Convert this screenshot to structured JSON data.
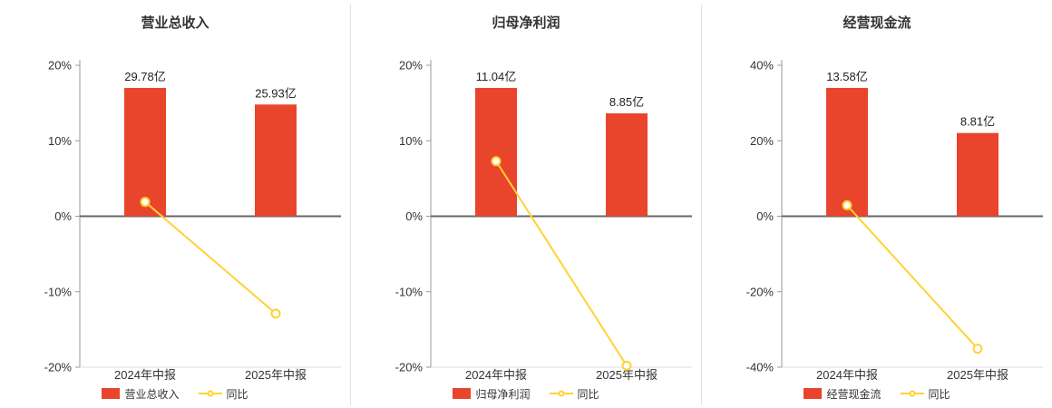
{
  "colors": {
    "background": "#ffffff",
    "bar": "#e8452c",
    "line": "#ffd234",
    "axis": "#999999",
    "baseline": "#dddddd",
    "zero_line": "#666666",
    "tick_label": "#333333",
    "value_label": "#222222",
    "category_label": "#333333",
    "divider": "#e0e0e0",
    "title": "#333333"
  },
  "chart_data": [
    {
      "type": "bar",
      "title": "营业总收入",
      "categories": [
        "2024年中报",
        "2025年中报"
      ],
      "bar_series": {
        "name": "营业总收入",
        "unit": "亿",
        "values": [
          29.78,
          25.93
        ],
        "labels": [
          "29.78亿",
          "25.93亿"
        ]
      },
      "line_series": {
        "name": "同比",
        "unit": "%",
        "values": [
          1.9,
          -12.9
        ]
      },
      "ylim": [
        -20,
        20
      ],
      "yticks": [
        20,
        10,
        0,
        -10,
        -20
      ],
      "ytick_suffix": "%",
      "grid": false,
      "legend_position": "bottom"
    },
    {
      "type": "bar",
      "title": "归母净利润",
      "categories": [
        "2024年中报",
        "2025年中报"
      ],
      "bar_series": {
        "name": "归母净利润",
        "unit": "亿",
        "values": [
          11.04,
          8.85
        ],
        "labels": [
          "11.04亿",
          "8.85亿"
        ]
      },
      "line_series": {
        "name": "同比",
        "unit": "%",
        "values": [
          7.3,
          -19.8
        ]
      },
      "ylim": [
        -20,
        20
      ],
      "yticks": [
        20,
        10,
        0,
        -10,
        -20
      ],
      "ytick_suffix": "%",
      "grid": false,
      "legend_position": "bottom"
    },
    {
      "type": "bar",
      "title": "经营现金流",
      "categories": [
        "2024年中报",
        "2025年中报"
      ],
      "bar_series": {
        "name": "经营现金流",
        "unit": "亿",
        "values": [
          13.58,
          8.81
        ],
        "labels": [
          "13.58亿",
          "8.81亿"
        ]
      },
      "line_series": {
        "name": "同比",
        "unit": "%",
        "values": [
          2.9,
          -35.1
        ]
      },
      "ylim": [
        -40,
        40
      ],
      "yticks": [
        40,
        20,
        0,
        -20,
        -40
      ],
      "ytick_suffix": "%",
      "grid": false,
      "legend_position": "bottom"
    }
  ]
}
